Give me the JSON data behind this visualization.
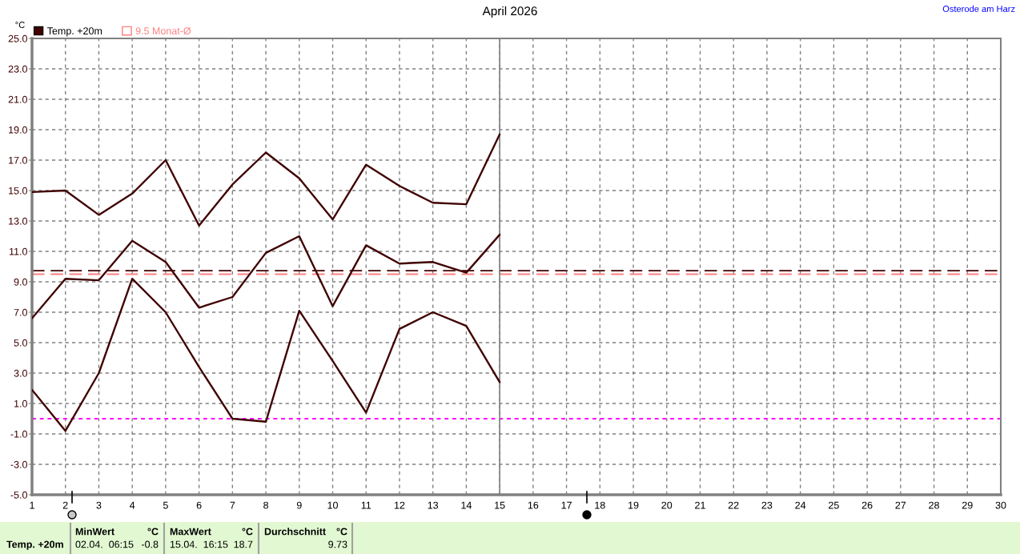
{
  "chart_data": {
    "type": "line",
    "title": "April 2026",
    "ylabel": "°C",
    "x": [
      1,
      2,
      3,
      4,
      5,
      6,
      7,
      8,
      9,
      10,
      11,
      12,
      13,
      14,
      15
    ],
    "series": [
      {
        "color": "#400000",
        "values": [
          14.9,
          15.0,
          13.4,
          14.8,
          17.0,
          12.7,
          15.4,
          17.5,
          15.8,
          13.1,
          16.7,
          15.3,
          14.2,
          14.1,
          18.7
        ]
      },
      {
        "name": "Temp. +20m",
        "color": "#400000",
        "values": [
          6.6,
          9.2,
          9.1,
          11.7,
          10.3,
          7.3,
          8.0,
          10.9,
          12.0,
          7.4,
          11.4,
          10.2,
          10.3,
          9.6,
          12.1
        ]
      },
      {
        "color": "#400000",
        "values": [
          1.9,
          -0.8,
          3.0,
          9.2,
          7.0,
          3.4,
          0.0,
          -0.2,
          7.1,
          3.8,
          0.4,
          5.9,
          7.0,
          6.1,
          2.4
        ]
      }
    ],
    "xlim": [
      1,
      30
    ],
    "xticks": [
      1,
      2,
      3,
      4,
      5,
      6,
      7,
      8,
      9,
      10,
      11,
      12,
      13,
      14,
      15,
      16,
      17,
      18,
      19,
      20,
      21,
      22,
      23,
      24,
      25,
      26,
      27,
      28,
      29,
      30
    ],
    "ylim": [
      -5,
      25
    ],
    "yticks": [
      {
        "value": -5,
        "label": "-5.0"
      },
      {
        "value": -3,
        "label": "-3.0"
      },
      {
        "value": -1,
        "label": "-1.0"
      },
      {
        "value": 1,
        "label": "1.0"
      },
      {
        "value": 3,
        "label": "3.0"
      },
      {
        "value": 5,
        "label": "5.0"
      },
      {
        "value": 7,
        "label": "7.0"
      },
      {
        "value": 9,
        "label": "9.0"
      },
      {
        "value": 11,
        "label": "11.0"
      },
      {
        "value": 13,
        "label": "13.0"
      },
      {
        "value": 15,
        "label": "15.0"
      },
      {
        "value": 17,
        "label": "17.0"
      },
      {
        "value": 19,
        "label": "19.0"
      },
      {
        "value": 21,
        "label": "21.0"
      },
      {
        "value": 23,
        "label": "23.0"
      },
      {
        "value": 25,
        "label": "25.0"
      }
    ],
    "ref_lines": [
      {
        "axis": "y",
        "value": 9.73,
        "color": "#400000",
        "line_style": "dashed"
      },
      {
        "axis": "y",
        "value": 9.5,
        "label": "9.5 Monat-Ø",
        "color": "#ff8080",
        "line_style": "dashed"
      },
      {
        "axis": "y",
        "value": 0,
        "color": "#ff00ff",
        "line_style": "dotted"
      },
      {
        "axis": "x",
        "value": 15,
        "color": "#808080",
        "line_style": "solid"
      }
    ],
    "grid": true,
    "legend": "top left",
    "line_style": "solid",
    "annotations": [
      "Osterode am Harz",
      "Temp. +20m",
      "MinWert",
      "°C",
      "02.04.  06:15",
      "-0.8",
      "MaxWert",
      "°C",
      "15.04.  16:15",
      "18.7",
      "Durchschnitt",
      "°C",
      "9.73"
    ]
  }
}
